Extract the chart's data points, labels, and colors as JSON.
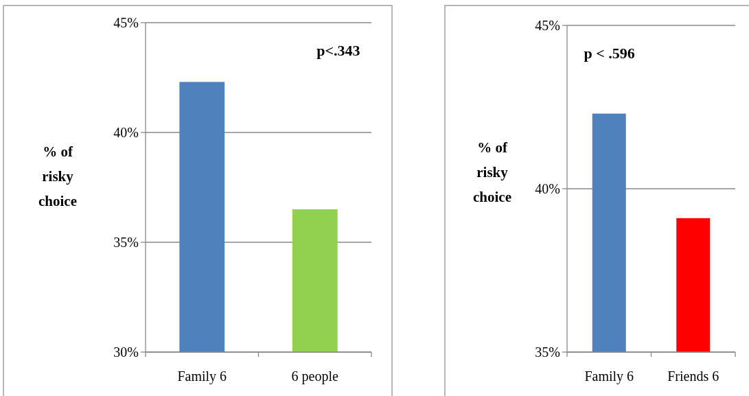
{
  "chart_data": [
    {
      "type": "bar",
      "ylabel": "% of risky choice",
      "categories": [
        "Family 6",
        "6 people"
      ],
      "values": [
        42.3,
        36.5
      ],
      "colors": [
        "#4f81bd",
        "#92d050"
      ],
      "ylim": [
        30,
        45
      ],
      "yticks": [
        {
          "value": 30,
          "label": "30%"
        },
        {
          "value": 35,
          "label": "35%"
        },
        {
          "value": 40,
          "label": "40%"
        },
        {
          "value": 45,
          "label": "45%"
        }
      ],
      "grid": "y",
      "annotations": [
        "p<.343"
      ]
    },
    {
      "type": "bar",
      "ylabel": "% of risky choice",
      "categories": [
        "Family 6",
        "Friends 6"
      ],
      "values": [
        42.3,
        39.1
      ],
      "colors": [
        "#4f81bd",
        "#ff0000"
      ],
      "ylim": [
        35,
        45
      ],
      "yticks": [
        {
          "value": 35,
          "label": "35%"
        },
        {
          "value": 40,
          "label": "40%"
        },
        {
          "value": 45,
          "label": "45%"
        }
      ],
      "grid": "y",
      "annotations": [
        "p < .596"
      ]
    }
  ]
}
